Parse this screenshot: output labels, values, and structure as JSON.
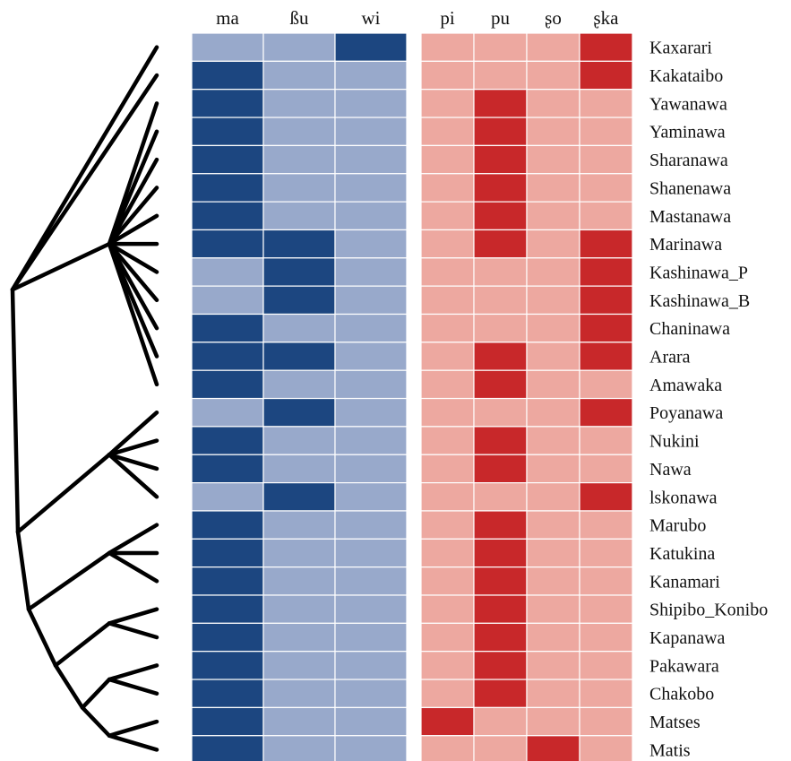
{
  "colors": {
    "blue_present": "#1c4680",
    "blue_absent": "#98a9cb",
    "red_present": "#c8282a",
    "red_absent": "#eda8a0",
    "grid_line": "#ffffff",
    "tree": "#000000"
  },
  "left_panel": {
    "columns": [
      "ma",
      "ßu",
      "wi"
    ]
  },
  "right_panel": {
    "columns": [
      "pi",
      "pu",
      "ʂo",
      "ʂka"
    ]
  },
  "languages": [
    {
      "name": "Kaxarari",
      "left": [
        0,
        0,
        1
      ],
      "right": [
        0,
        0,
        0,
        1
      ]
    },
    {
      "name": "Kakataibo",
      "left": [
        1,
        0,
        0
      ],
      "right": [
        0,
        0,
        0,
        1
      ]
    },
    {
      "name": "Yawanawa",
      "left": [
        1,
        0,
        0
      ],
      "right": [
        0,
        1,
        0,
        0
      ]
    },
    {
      "name": "Yaminawa",
      "left": [
        1,
        0,
        0
      ],
      "right": [
        0,
        1,
        0,
        0
      ]
    },
    {
      "name": "Sharanawa",
      "left": [
        1,
        0,
        0
      ],
      "right": [
        0,
        1,
        0,
        0
      ]
    },
    {
      "name": "Shanenawa",
      "left": [
        1,
        0,
        0
      ],
      "right": [
        0,
        1,
        0,
        0
      ]
    },
    {
      "name": "Mastanawa",
      "left": [
        1,
        0,
        0
      ],
      "right": [
        0,
        1,
        0,
        0
      ]
    },
    {
      "name": "Marinawa",
      "left": [
        1,
        1,
        0
      ],
      "right": [
        0,
        1,
        0,
        1
      ]
    },
    {
      "name": "Kashinawa_P",
      "left": [
        0,
        1,
        0
      ],
      "right": [
        0,
        0,
        0,
        1
      ]
    },
    {
      "name": "Kashinawa_B",
      "left": [
        0,
        1,
        0
      ],
      "right": [
        0,
        0,
        0,
        1
      ]
    },
    {
      "name": "Chaninawa",
      "left": [
        1,
        0,
        0
      ],
      "right": [
        0,
        0,
        0,
        1
      ]
    },
    {
      "name": "Arara",
      "left": [
        1,
        1,
        0
      ],
      "right": [
        0,
        1,
        0,
        1
      ]
    },
    {
      "name": "Amawaka",
      "left": [
        1,
        0,
        0
      ],
      "right": [
        0,
        1,
        0,
        0
      ]
    },
    {
      "name": "Poyanawa",
      "left": [
        0,
        1,
        0
      ],
      "right": [
        0,
        0,
        0,
        1
      ]
    },
    {
      "name": "Nukini",
      "left": [
        1,
        0,
        0
      ],
      "right": [
        0,
        1,
        0,
        0
      ]
    },
    {
      "name": "Nawa",
      "left": [
        1,
        0,
        0
      ],
      "right": [
        0,
        1,
        0,
        0
      ]
    },
    {
      "name": "lskonawa",
      "left": [
        0,
        1,
        0
      ],
      "right": [
        0,
        0,
        0,
        1
      ]
    },
    {
      "name": "Marubo",
      "left": [
        1,
        0,
        0
      ],
      "right": [
        0,
        1,
        0,
        0
      ]
    },
    {
      "name": "Katukina",
      "left": [
        1,
        0,
        0
      ],
      "right": [
        0,
        1,
        0,
        0
      ]
    },
    {
      "name": "Kanamari",
      "left": [
        1,
        0,
        0
      ],
      "right": [
        0,
        1,
        0,
        0
      ]
    },
    {
      "name": "Shipibo_Konibo",
      "left": [
        1,
        0,
        0
      ],
      "right": [
        0,
        1,
        0,
        0
      ]
    },
    {
      "name": "Kapanawa",
      "left": [
        1,
        0,
        0
      ],
      "right": [
        0,
        1,
        0,
        0
      ]
    },
    {
      "name": "Pakawara",
      "left": [
        1,
        0,
        0
      ],
      "right": [
        0,
        1,
        0,
        0
      ]
    },
    {
      "name": "Chakobo",
      "left": [
        1,
        0,
        0
      ],
      "right": [
        0,
        1,
        0,
        0
      ]
    },
    {
      "name": "Matses",
      "left": [
        1,
        0,
        0
      ],
      "right": [
        1,
        0,
        0,
        0
      ]
    },
    {
      "name": "Matis",
      "left": [
        1,
        0,
        0
      ],
      "right": [
        0,
        0,
        1,
        0
      ]
    }
  ],
  "tree": {
    "root": {
      "children": [
        {
          "leaves": [
            0
          ]
        },
        {
          "leaves": [
            1
          ]
        },
        {
          "leaves": [
            2,
            3,
            4,
            5,
            6,
            7,
            8,
            9,
            10,
            11,
            12
          ]
        },
        {
          "children": [
            {
              "leaves": [
                13,
                14,
                15,
                16
              ]
            },
            {
              "children": [
                {
                  "leaves": [
                    17,
                    18,
                    19
                  ]
                },
                {
                  "children": [
                    {
                      "leaves": [
                        20,
                        21
                      ]
                    },
                    {
                      "children": [
                        {
                          "leaves": [
                            22,
                            23
                          ]
                        },
                        {
                          "leaves": [
                            24,
                            25
                          ]
                        }
                      ]
                    }
                  ]
                }
              ]
            }
          ]
        }
      ]
    }
  }
}
